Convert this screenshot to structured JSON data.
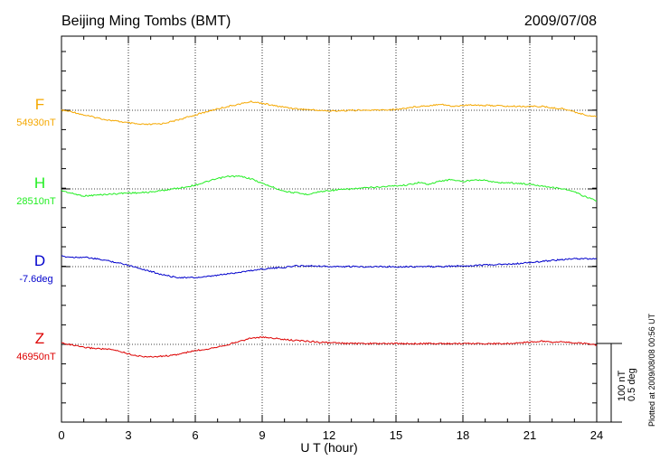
{
  "title": "Beijing Ming Tombs (BMT)",
  "date": "2009/07/08",
  "plotted_note": "Plotted at 2009/08/08 00:56 UT",
  "scale_bar": {
    "label1": "100 nT",
    "label2": "0.5 deg"
  },
  "chart_data": {
    "type": "line",
    "xlabel": "U T (hour)",
    "xlim": [
      0,
      24
    ],
    "xticks": [
      0,
      3,
      6,
      9,
      12,
      15,
      18,
      21,
      24
    ],
    "xtick_labels": [
      "0",
      "3",
      "6",
      "9",
      "12",
      "15",
      "18",
      "21",
      "24"
    ],
    "grid": true,
    "series": [
      {
        "name": "F",
        "baseline_label": "54930nT",
        "color": "#f5a800",
        "x": [
          0,
          0.5,
          1,
          1.5,
          2,
          2.5,
          3,
          3.5,
          4,
          4.5,
          5,
          5.5,
          6,
          6.5,
          7,
          7.5,
          8,
          8.5,
          9,
          9.5,
          10,
          10.5,
          11,
          11.5,
          12,
          13,
          14,
          15,
          15.5,
          16,
          16.5,
          17,
          17.5,
          18,
          18.5,
          19,
          19.5,
          20,
          21,
          21.5,
          22,
          22.5,
          23,
          23.5,
          24
        ],
        "values": [
          0,
          -2,
          -6,
          -9,
          -12,
          -14,
          -16,
          -18,
          -18,
          -17,
          -14,
          -10,
          -6,
          -2,
          2,
          5,
          8,
          11,
          9,
          6,
          4,
          2,
          1,
          0,
          -1,
          0,
          0,
          1,
          3,
          5,
          6,
          8,
          5,
          6,
          7,
          6,
          6,
          5,
          5,
          5,
          3,
          2,
          -2,
          -6,
          -8
        ]
      },
      {
        "name": "H",
        "baseline_label": "28510nT",
        "color": "#22ee22",
        "x": [
          0,
          0.5,
          1,
          1.5,
          2,
          2.5,
          3,
          3.5,
          4,
          4.5,
          5,
          5.5,
          6,
          6.5,
          7,
          7.5,
          8,
          8.5,
          9,
          9.5,
          10,
          10.5,
          11,
          11.5,
          12,
          12.5,
          13,
          13.5,
          14,
          14.5,
          15,
          15.5,
          16,
          16.5,
          17,
          17.5,
          18,
          18.5,
          19,
          19.5,
          20,
          20.5,
          21,
          21.5,
          22,
          22.5,
          23,
          23.5,
          24
        ],
        "values": [
          -2,
          -6,
          -9,
          -8,
          -7,
          -6,
          -5,
          -5,
          -4,
          -2,
          0,
          2,
          5,
          9,
          13,
          16,
          16,
          13,
          7,
          2,
          -3,
          -5,
          -7,
          -4,
          -2,
          -1,
          0,
          1,
          2,
          3,
          4,
          5,
          8,
          6,
          10,
          12,
          9,
          12,
          11,
          8,
          8,
          7,
          6,
          4,
          2,
          0,
          -4,
          -10,
          -15
        ]
      },
      {
        "name": "D",
        "baseline_label": "-7.6deg",
        "color": "#0000cc",
        "x": [
          0,
          0.5,
          1,
          1.5,
          2,
          2.5,
          3,
          3.5,
          4,
          4.5,
          5,
          5.5,
          6,
          6.5,
          7,
          7.5,
          8,
          8.5,
          9,
          9.5,
          10,
          10.5,
          11,
          11.5,
          12,
          13,
          14,
          15,
          16,
          17,
          18,
          19,
          20,
          21,
          22,
          23,
          24
        ],
        "values": [
          13,
          12,
          12,
          10,
          8,
          5,
          2,
          -2,
          -6,
          -10,
          -13,
          -14,
          -14,
          -13,
          -11,
          -9,
          -7,
          -5,
          -3,
          -2,
          -1,
          1,
          1,
          1,
          0,
          0,
          0,
          0,
          0,
          0,
          1,
          2,
          3,
          5,
          8,
          10,
          10
        ]
      },
      {
        "name": "Z",
        "baseline_label": "46950nT",
        "color": "#dd0000",
        "x": [
          0,
          0.5,
          1,
          1.5,
          2,
          2.5,
          3,
          3.5,
          4,
          4.5,
          5,
          5.5,
          6,
          6.5,
          7,
          7.5,
          8,
          8.5,
          9,
          9.5,
          10,
          10.5,
          11,
          11.5,
          12,
          13,
          14,
          15,
          16,
          17,
          18,
          19,
          20,
          21,
          21.5,
          22,
          22.5,
          23,
          23.5,
          24
        ],
        "values": [
          2,
          -1,
          -4,
          -5,
          -6,
          -8,
          -12,
          -15,
          -16,
          -15,
          -14,
          -11,
          -8,
          -6,
          -3,
          0,
          4,
          8,
          9,
          8,
          6,
          5,
          4,
          3,
          2,
          1,
          1,
          1,
          1,
          1,
          1,
          1,
          1,
          3,
          4,
          3,
          3,
          2,
          1,
          -1
        ]
      }
    ]
  }
}
